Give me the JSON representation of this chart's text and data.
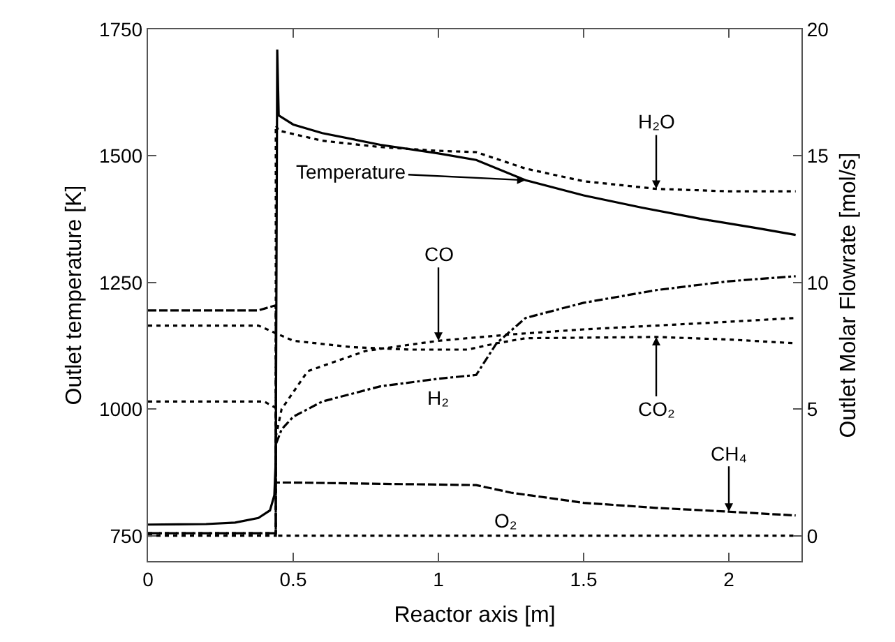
{
  "chart_data": {
    "type": "line",
    "xlabel": "Reactor axis [m]",
    "ylabel": "Outlet temperature [K]",
    "y2label": "Outlet Molar Flowrate [mol/s]",
    "xlim": [
      0,
      2.25
    ],
    "xticks": [
      0,
      0.5,
      1,
      1.5,
      2
    ],
    "ylim": [
      700,
      1750
    ],
    "yticks": [
      750,
      1000,
      1250,
      1500,
      1750
    ],
    "y2lim": [
      -1,
      20
    ],
    "y2ticks": [
      0,
      5,
      10,
      15,
      20
    ],
    "marker": "none",
    "series": [
      {
        "name": "Temperature",
        "color": "#000000",
        "line_style": "solid",
        "x": [
          0,
          0.2,
          0.3,
          0.38,
          0.42,
          0.435,
          0.44,
          0.445,
          0.45,
          0.5,
          0.6,
          0.8,
          1.0,
          1.13,
          1.3,
          1.5,
          1.7,
          1.9,
          2.1,
          2.23
        ],
        "values": [
          772,
          773,
          776,
          785,
          800,
          830,
          900,
          1710,
          1580,
          1562,
          1545,
          1522,
          1505,
          1492,
          1452,
          1422,
          1398,
          1376,
          1357,
          1344
        ]
      },
      {
        "name": "H₂O",
        "color": "#000000",
        "line_style": "dotted",
        "axis": "y2",
        "x": [
          0,
          0.44,
          0.44,
          0.45,
          0.6,
          0.8,
          1.0,
          1.13,
          1.3,
          1.5,
          1.75,
          2.0,
          2.23
        ],
        "values": [
          0.1,
          0.1,
          16.2,
          16.0,
          15.6,
          15.35,
          15.2,
          15.15,
          14.5,
          14.0,
          13.7,
          13.6,
          13.6
        ]
      },
      {
        "name": "CO",
        "color": "#000000",
        "line_style": "dotted",
        "axis": "y2",
        "x": [
          0,
          0.44,
          0.44,
          0.46,
          0.55,
          0.75,
          1.0,
          1.25,
          1.5,
          1.75,
          2.0,
          2.23
        ],
        "values": [
          0,
          0,
          3.9,
          5.0,
          6.5,
          7.3,
          7.7,
          7.95,
          8.15,
          8.3,
          8.45,
          8.6
        ]
      },
      {
        "name": "H₂",
        "color": "#000000",
        "line_style": "dashdot",
        "axis": "y2",
        "x": [
          0,
          0.44,
          0.44,
          0.46,
          0.5,
          0.6,
          0.8,
          1.0,
          1.13,
          1.2,
          1.3,
          1.5,
          1.75,
          2.0,
          2.23
        ],
        "values": [
          0.1,
          0.1,
          3.6,
          4.2,
          4.7,
          5.3,
          5.9,
          6.2,
          6.35,
          7.6,
          8.6,
          9.2,
          9.7,
          10.05,
          10.25
        ]
      },
      {
        "name": "CO₂",
        "color": "#000000",
        "line_style": "dotted",
        "axis": "y2",
        "x": [
          0,
          0.38,
          0.44,
          0.5,
          0.7,
          0.9,
          1.1,
          1.2,
          1.3,
          1.75,
          2.0,
          2.23
        ],
        "values": [
          8.3,
          8.3,
          8.0,
          7.7,
          7.45,
          7.35,
          7.35,
          7.6,
          7.8,
          7.85,
          7.75,
          7.6
        ]
      },
      {
        "name": "CH₄",
        "color": "#000000",
        "line_style": "dashed",
        "axis": "y2",
        "x": [
          0,
          0.38,
          0.44,
          0.44,
          0.5,
          0.8,
          1.13,
          1.25,
          1.5,
          1.75,
          2.0,
          2.23
        ],
        "values": [
          8.9,
          8.9,
          9.1,
          2.1,
          2.1,
          2.05,
          2.0,
          1.7,
          1.3,
          1.1,
          0.95,
          0.8
        ]
      },
      {
        "name": "O₂",
        "color": "#000000",
        "line_style": "dotted",
        "axis": "y2",
        "x": [
          0,
          0.4,
          0.44,
          0.44,
          1.23,
          2.23
        ],
        "values": [
          5.3,
          5.3,
          5.05,
          0,
          0,
          0
        ]
      }
    ]
  }
}
